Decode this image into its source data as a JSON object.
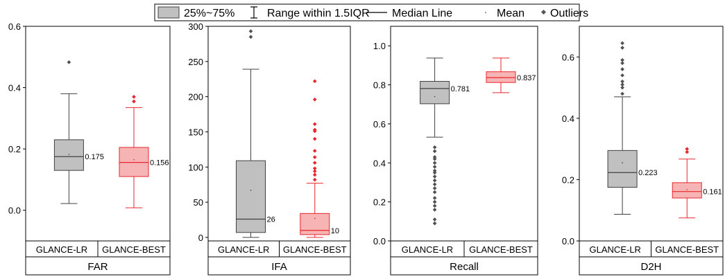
{
  "legend": {
    "box_label": "25%~75%",
    "range_label": "Range within 1.5IQR",
    "median_label": "Median Line",
    "mean_label": "Mean",
    "outliers_label": "Outliers"
  },
  "colors": {
    "lr_fill": "#c0c0c0",
    "lr_stroke": "#404040",
    "best_fill": "#f7b4b4",
    "best_stroke": "#e8262b",
    "outlier_lr": "#505050",
    "outlier_best": "#e8262b",
    "axis": "#000000"
  },
  "chart_data": [
    {
      "type": "box",
      "metric": "FAR",
      "categories": [
        "GLANCE-LR",
        "GLANCE-BEST"
      ],
      "ylim": [
        -0.1,
        0.6
      ],
      "yticks": [
        0.0,
        0.2,
        0.4,
        0.6
      ],
      "tick_decimals": 1,
      "series": [
        {
          "q1": 0.13,
          "q3": 0.23,
          "median": 0.175,
          "mean": 0.182,
          "whisker_low": 0.022,
          "whisker_high": 0.38,
          "median_label": "0.175",
          "outliers": [
            0.483
          ]
        },
        {
          "q1": 0.11,
          "q3": 0.205,
          "median": 0.156,
          "mean": 0.165,
          "whisker_low": 0.008,
          "whisker_high": 0.335,
          "median_label": "0.156",
          "outliers": [
            0.355,
            0.37
          ]
        }
      ]
    },
    {
      "type": "box",
      "metric": "IFA",
      "categories": [
        "GLANCE-LR",
        "GLANCE-BEST"
      ],
      "ylim": [
        -5,
        300
      ],
      "yticks": [
        0,
        50,
        100,
        150,
        200,
        250,
        300
      ],
      "tick_decimals": 0,
      "series": [
        {
          "q1": 7,
          "q3": 109,
          "median": 26,
          "mean": 67,
          "whisker_low": 0,
          "whisker_high": 239,
          "median_label": "26",
          "outliers": [
            285,
            293
          ]
        },
        {
          "q1": 4,
          "q3": 34,
          "median": 10,
          "mean": 27,
          "whisker_low": 0,
          "whisker_high": 77,
          "median_label": "10",
          "outliers": [
            82,
            89,
            94,
            98,
            106,
            114,
            123,
            140,
            151,
            153,
            161,
            196,
            222
          ]
        }
      ]
    },
    {
      "type": "box",
      "metric": "Recall",
      "categories": [
        "GLANCE-LR",
        "GLANCE-BEST"
      ],
      "ylim": [
        0.0,
        1.1
      ],
      "yticks": [
        0.0,
        0.2,
        0.4,
        0.6,
        0.8,
        1.0
      ],
      "tick_decimals": 1,
      "series": [
        {
          "q1": 0.703,
          "q3": 0.818,
          "median": 0.781,
          "mean": 0.74,
          "whisker_low": 0.532,
          "whisker_high": 0.937,
          "median_label": "0.781",
          "outliers": [
            0.09,
            0.11,
            0.16,
            0.18,
            0.2,
            0.22,
            0.25,
            0.27,
            0.29,
            0.31,
            0.33,
            0.35,
            0.36,
            0.38,
            0.4,
            0.42,
            0.43,
            0.46,
            0.48
          ]
        },
        {
          "q1": 0.812,
          "q3": 0.867,
          "median": 0.837,
          "mean": 0.838,
          "whisker_low": 0.76,
          "whisker_high": 0.937,
          "median_label": "0.837",
          "outliers": []
        }
      ]
    },
    {
      "type": "box",
      "metric": "D2H",
      "categories": [
        "GLANCE-LR",
        "GLANCE-BEST"
      ],
      "ylim": [
        0.0,
        0.7
      ],
      "yticks": [
        0.0,
        0.2,
        0.4,
        0.6
      ],
      "tick_decimals": 1,
      "series": [
        {
          "q1": 0.175,
          "q3": 0.295,
          "median": 0.223,
          "mean": 0.255,
          "whisker_low": 0.087,
          "whisker_high": 0.47,
          "median_label": "0.223",
          "outliers": [
            0.48,
            0.5,
            0.51,
            0.52,
            0.54,
            0.56,
            0.58,
            0.59,
            0.63,
            0.645
          ]
        },
        {
          "q1": 0.14,
          "q3": 0.19,
          "median": 0.161,
          "mean": 0.167,
          "whisker_low": 0.075,
          "whisker_high": 0.267,
          "median_label": "0.161",
          "outliers": [
            0.29,
            0.3
          ]
        }
      ]
    }
  ]
}
